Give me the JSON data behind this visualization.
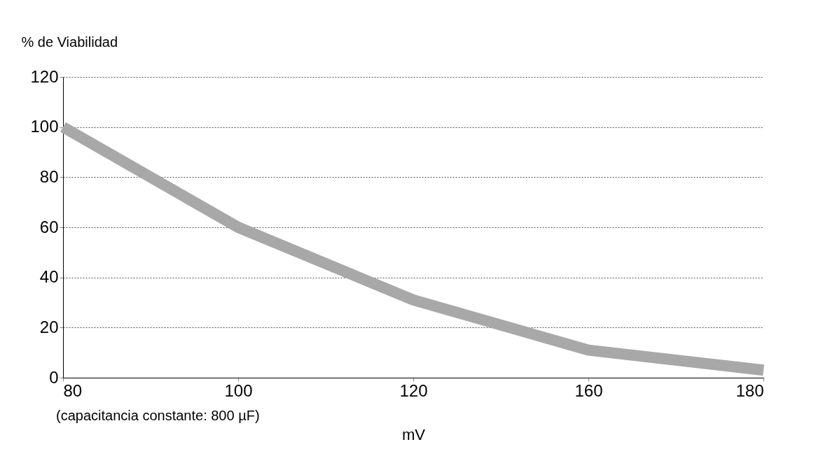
{
  "chart_data": {
    "type": "line",
    "ylabel": "% de Viabilidad",
    "xlabel": "mV",
    "categories": [
      "80",
      "100",
      "120",
      "160",
      "180"
    ],
    "series": [
      {
        "color": "#a8a8a8",
        "values": [
          100,
          60,
          31,
          11,
          3
        ]
      }
    ],
    "ylim": [
      0,
      120
    ],
    "yticks": [
      0,
      20,
      40,
      60,
      80,
      100,
      120
    ],
    "grid": "y",
    "marker": "none",
    "line_style": "solid",
    "annotations": [
      "(capacitancia constante: 800 µF)"
    ]
  }
}
